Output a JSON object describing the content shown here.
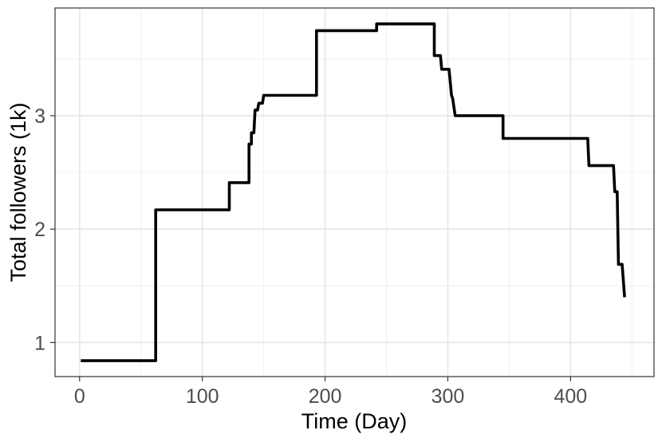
{
  "chart_data": {
    "type": "line",
    "xlabel": "Time (Day)",
    "ylabel": "Total followers (1k)",
    "xlim": [
      -20,
      468
    ],
    "ylim": [
      0.7,
      3.95
    ],
    "xticks": [
      0,
      100,
      200,
      300,
      400
    ],
    "yticks": [
      1,
      2,
      3
    ],
    "x_tick_labels": [
      "0",
      "100",
      "200",
      "300",
      "400"
    ],
    "y_tick_labels": [
      "1",
      "2",
      "3"
    ],
    "grid": true,
    "series": [
      {
        "color": "#000000",
        "points": [
          [
            1,
            0.84
          ],
          [
            62,
            0.84
          ],
          [
            62,
            2.17
          ],
          [
            122,
            2.17
          ],
          [
            122,
            2.41
          ],
          [
            138,
            2.41
          ],
          [
            138,
            2.75
          ],
          [
            140,
            2.75
          ],
          [
            140,
            2.85
          ],
          [
            142,
            2.85
          ],
          [
            143,
            3.05
          ],
          [
            145,
            3.05
          ],
          [
            146,
            3.11
          ],
          [
            149,
            3.11
          ],
          [
            150,
            3.18
          ],
          [
            193,
            3.18
          ],
          [
            193,
            3.75
          ],
          [
            242,
            3.75
          ],
          [
            242,
            3.81
          ],
          [
            289,
            3.81
          ],
          [
            289,
            3.53
          ],
          [
            294,
            3.53
          ],
          [
            295,
            3.41
          ],
          [
            301,
            3.41
          ],
          [
            303,
            3.18
          ],
          [
            304,
            3.15
          ],
          [
            306,
            3.0
          ],
          [
            345,
            3.0
          ],
          [
            345,
            2.8
          ],
          [
            414,
            2.8
          ],
          [
            415,
            2.56
          ],
          [
            435,
            2.56
          ],
          [
            436,
            2.33
          ],
          [
            438,
            2.33
          ],
          [
            439,
            1.69
          ],
          [
            442,
            1.69
          ],
          [
            444,
            1.4
          ]
        ]
      }
    ]
  }
}
